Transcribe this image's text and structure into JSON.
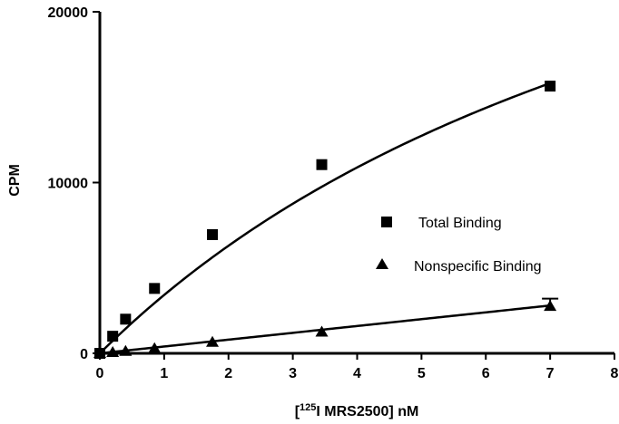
{
  "chart_data": {
    "type": "scatter",
    "xlabel_prefix": "[",
    "xlabel_superscript": "125",
    "xlabel_suffix": "I MRS2500] nM",
    "ylabel": "CPM",
    "xlim": [
      0,
      8
    ],
    "ylim": [
      0,
      20000
    ],
    "xticks": [
      "0",
      "1",
      "2",
      "3",
      "4",
      "5",
      "6",
      "7",
      "8"
    ],
    "yticks": [
      "0",
      "10000",
      "20000"
    ],
    "grid": false,
    "legend_position": "center-right",
    "series": [
      {
        "name": "Total Binding",
        "marker": "square",
        "x": [
          0,
          0.2,
          0.4,
          0.85,
          1.75,
          3.45,
          7.0
        ],
        "y": [
          0,
          1000,
          2000,
          3800,
          6950,
          11050,
          15650
        ],
        "fit_params": {
          "bmax": 40000,
          "kd": 10.7
        }
      },
      {
        "name": "Nonspecific Binding",
        "marker": "triangle",
        "x": [
          0,
          0.2,
          0.4,
          0.85,
          1.75,
          3.45,
          7.0
        ],
        "y": [
          0,
          50,
          120,
          280,
          650,
          1250,
          2750
        ],
        "error": [
          0,
          0,
          0,
          0,
          0,
          0,
          450
        ],
        "fit_params": {
          "slope": 400
        }
      }
    ]
  }
}
